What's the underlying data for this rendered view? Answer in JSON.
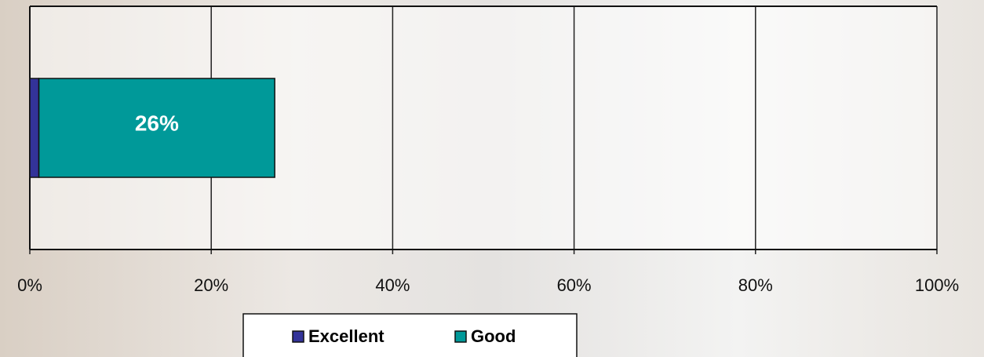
{
  "chart_data": {
    "type": "bar",
    "orientation": "horizontal",
    "stacked": true,
    "categories": [
      null
    ],
    "series": [
      {
        "name": "Excellent",
        "color": "#333399",
        "values": [
          1
        ]
      },
      {
        "name": "Good",
        "color": "#009999",
        "values": [
          26
        ],
        "value_labels": [
          "26%"
        ]
      }
    ],
    "xlim": [
      0,
      100
    ],
    "xticks": [
      {
        "value": 0,
        "label": "0%"
      },
      {
        "value": 20,
        "label": "20%"
      },
      {
        "value": 40,
        "label": "40%"
      },
      {
        "value": 60,
        "label": "60%"
      },
      {
        "value": 80,
        "label": "80%"
      },
      {
        "value": 100,
        "label": "100%"
      }
    ],
    "grid": true,
    "legend": "bottom"
  }
}
